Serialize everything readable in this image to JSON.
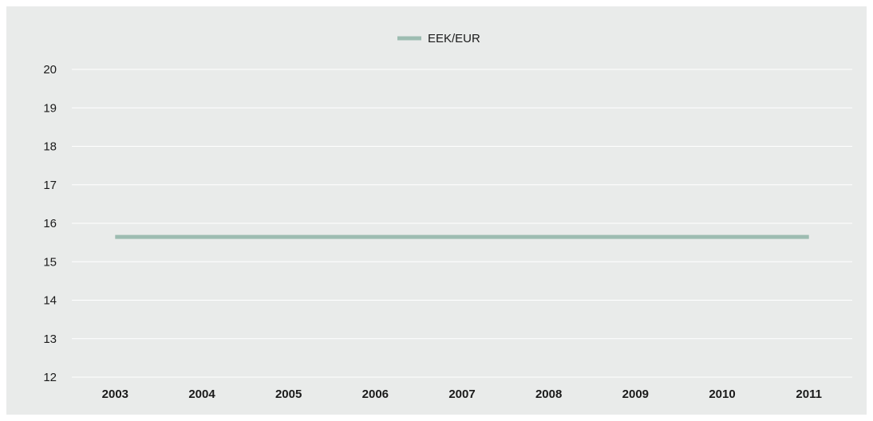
{
  "chart_data": {
    "type": "line",
    "x": [
      "2003",
      "2004",
      "2005",
      "2006",
      "2007",
      "2008",
      "2009",
      "2010",
      "2011"
    ],
    "series": [
      {
        "name": "EEK/EUR",
        "values": [
          15.6466,
          15.6466,
          15.6466,
          15.6466,
          15.6466,
          15.6466,
          15.6466,
          15.6466,
          15.6466
        ],
        "color": "#9dbcb1"
      }
    ],
    "yticks": [
      12,
      13,
      14,
      15,
      16,
      17,
      18,
      19,
      20
    ],
    "ylim": [
      12,
      20
    ],
    "grid": true,
    "legend": "top-center",
    "title": "",
    "xlabel": "",
    "ylabel": ""
  },
  "colors": {
    "background": "#e9ebea",
    "gridline": "#ffffff",
    "text": "#1a1a1a"
  }
}
